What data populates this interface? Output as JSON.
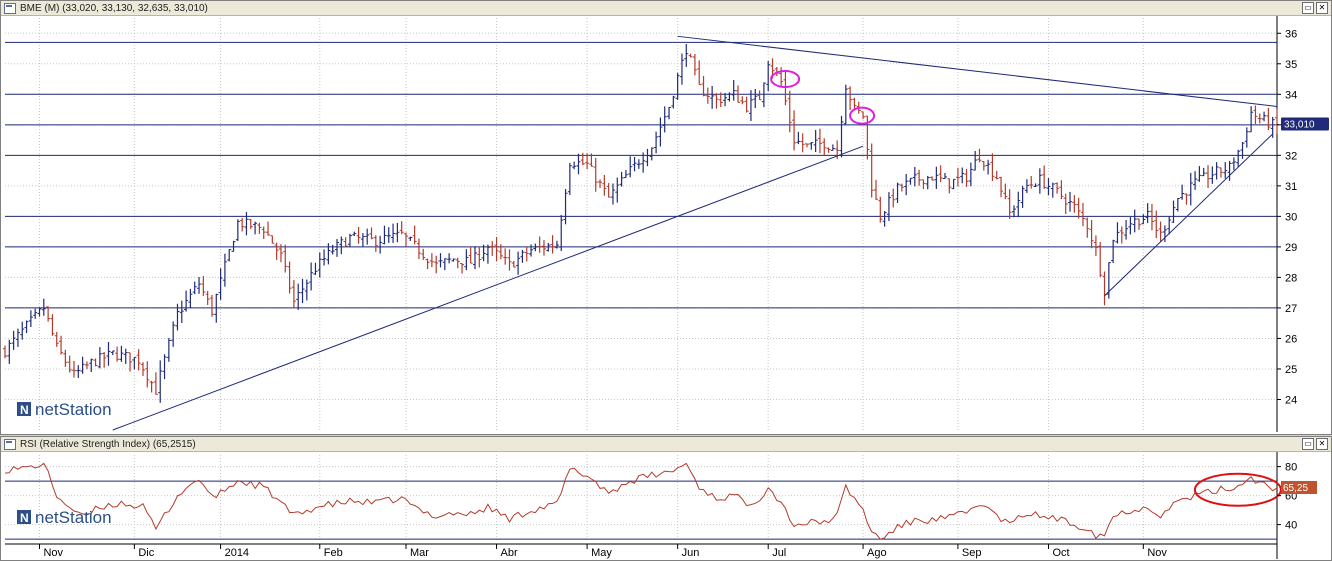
{
  "main_panel": {
    "title": "BME (M) (33,020, 33,130, 32,635, 33,010)",
    "last_price_label": "33,010",
    "logo_text": "netStation",
    "minimize_glyph": "▭",
    "close_glyph": "✕"
  },
  "rsi_panel": {
    "title": "RSI (Relative Strength Index) (65,2515)",
    "last_value_label": "65,25",
    "logo_text": "netStation"
  },
  "colors": {
    "up_bar": "#1f2a78",
    "down_bar": "#b33a2a",
    "rsi_line": "#b33a2a",
    "trendline": "#1f2a78",
    "badge_bg": "#1f2a78",
    "rsi_badge_bg": "#c0522f",
    "annotation_magenta": "#e020e0",
    "annotation_red": "#dd1111"
  },
  "chart_data": [
    {
      "type": "ohlc",
      "title": "BME (M)",
      "ylim": [
        23,
        36.5
      ],
      "y_ticks": [
        24,
        25,
        26,
        27,
        28,
        29,
        30,
        31,
        32,
        33,
        34,
        35,
        36
      ],
      "x_ticks": [
        "Nov",
        "Dic",
        "2014",
        "Feb",
        "Mar",
        "Abr",
        "May",
        "Jun",
        "Jul",
        "Ago",
        "Sep",
        "Oct",
        "Nov"
      ],
      "x_tick_index": [
        8,
        30,
        50,
        73,
        93,
        114,
        135,
        156,
        177,
        199,
        221,
        242,
        264
      ],
      "horizontal_levels": [
        27,
        29,
        30,
        32,
        33,
        34,
        35.7
      ],
      "trendlines": [
        {
          "from": [
            25,
            23
          ],
          "to": [
            199,
            32.3
          ]
        },
        {
          "from": [
            156,
            35.9
          ],
          "to": [
            295,
            33.6
          ]
        },
        {
          "from": [
            255,
            27.4
          ],
          "to": [
            294,
            32.7
          ]
        }
      ],
      "anchors": [
        [
          0,
          25.6
        ],
        [
          5,
          26.4
        ],
        [
          9,
          27.0
        ],
        [
          12,
          25.7
        ],
        [
          16,
          24.8
        ],
        [
          20,
          25.2
        ],
        [
          25,
          25.5
        ],
        [
          31,
          25.3
        ],
        [
          35,
          24.3
        ],
        [
          40,
          26.8
        ],
        [
          45,
          27.8
        ],
        [
          48,
          26.9
        ],
        [
          54,
          29.8
        ],
        [
          60,
          29.6
        ],
        [
          64,
          28.7
        ],
        [
          67,
          27.2
        ],
        [
          72,
          28.3
        ],
        [
          76,
          28.9
        ],
        [
          80,
          29.3
        ],
        [
          86,
          29.2
        ],
        [
          92,
          29.4
        ],
        [
          96,
          28.9
        ],
        [
          100,
          28.4
        ],
        [
          104,
          28.6
        ],
        [
          108,
          28.5
        ],
        [
          112,
          29.0
        ],
        [
          117,
          28.4
        ],
        [
          122,
          28.9
        ],
        [
          128,
          29.1
        ],
        [
          131,
          31.8
        ],
        [
          135,
          31.7
        ],
        [
          140,
          30.6
        ],
        [
          145,
          31.5
        ],
        [
          150,
          32.3
        ],
        [
          154,
          33.6
        ],
        [
          158,
          35.5
        ],
        [
          161,
          34.2
        ],
        [
          165,
          33.8
        ],
        [
          169,
          34.0
        ],
        [
          172,
          33.6
        ],
        [
          175,
          33.9
        ],
        [
          177,
          35.1
        ],
        [
          180,
          34.4
        ],
        [
          183,
          32.5
        ],
        [
          186,
          32.3
        ],
        [
          190,
          32.4
        ],
        [
          193,
          32.2
        ],
        [
          195,
          34.3
        ],
        [
          197,
          33.5
        ],
        [
          199,
          33.3
        ],
        [
          201,
          31.0
        ],
        [
          203,
          30.0
        ],
        [
          207,
          30.9
        ],
        [
          211,
          31.2
        ],
        [
          215,
          31.3
        ],
        [
          219,
          31.1
        ],
        [
          223,
          31.3
        ],
        [
          226,
          32.0
        ],
        [
          230,
          31.3
        ],
        [
          233,
          30.1
        ],
        [
          237,
          31.0
        ],
        [
          240,
          31.2
        ],
        [
          244,
          30.8
        ],
        [
          248,
          30.3
        ],
        [
          251,
          29.7
        ],
        [
          253,
          28.9
        ],
        [
          255,
          27.6
        ],
        [
          257,
          29.3
        ],
        [
          261,
          29.8
        ],
        [
          265,
          30.0
        ],
        [
          268,
          29.4
        ],
        [
          272,
          30.6
        ],
        [
          276,
          31.1
        ],
        [
          280,
          31.4
        ],
        [
          284,
          31.6
        ],
        [
          287,
          32.4
        ],
        [
          289,
          33.4
        ],
        [
          291,
          33.2
        ],
        [
          294,
          33.0
        ]
      ],
      "last_close": 33.01
    },
    {
      "type": "line",
      "title": "RSI (Relative Strength Index)",
      "ylim": [
        28,
        88
      ],
      "y_ticks": [
        40,
        60,
        80
      ],
      "horizontal_levels": [
        30,
        70
      ],
      "anchors": [
        [
          0,
          78
        ],
        [
          5,
          79
        ],
        [
          9,
          82
        ],
        [
          12,
          60
        ],
        [
          15,
          52
        ],
        [
          18,
          45
        ],
        [
          22,
          52
        ],
        [
          27,
          55
        ],
        [
          32,
          52
        ],
        [
          35,
          37
        ],
        [
          40,
          60
        ],
        [
          45,
          72
        ],
        [
          48,
          58
        ],
        [
          54,
          70
        ],
        [
          60,
          66
        ],
        [
          64,
          55
        ],
        [
          67,
          46
        ],
        [
          72,
          52
        ],
        [
          76,
          54
        ],
        [
          80,
          56
        ],
        [
          86,
          55
        ],
        [
          92,
          58
        ],
        [
          96,
          50
        ],
        [
          100,
          46
        ],
        [
          104,
          48
        ],
        [
          108,
          47
        ],
        [
          112,
          52
        ],
        [
          117,
          44
        ],
        [
          122,
          50
        ],
        [
          128,
          54
        ],
        [
          131,
          78
        ],
        [
          135,
          74
        ],
        [
          140,
          62
        ],
        [
          145,
          70
        ],
        [
          150,
          74
        ],
        [
          154,
          76
        ],
        [
          158,
          82
        ],
        [
          161,
          66
        ],
        [
          165,
          58
        ],
        [
          169,
          60
        ],
        [
          172,
          55
        ],
        [
          175,
          58
        ],
        [
          177,
          66
        ],
        [
          180,
          55
        ],
        [
          183,
          40
        ],
        [
          186,
          41
        ],
        [
          190,
          42
        ],
        [
          193,
          46
        ],
        [
          195,
          66
        ],
        [
          197,
          58
        ],
        [
          199,
          50
        ],
        [
          201,
          35
        ],
        [
          203,
          30
        ],
        [
          207,
          38
        ],
        [
          211,
          43
        ],
        [
          215,
          43
        ],
        [
          219,
          45
        ],
        [
          223,
          48
        ],
        [
          226,
          55
        ],
        [
          230,
          46
        ],
        [
          233,
          40
        ],
        [
          237,
          48
        ],
        [
          240,
          46
        ],
        [
          244,
          44
        ],
        [
          248,
          40
        ],
        [
          251,
          38
        ],
        [
          253,
          33
        ],
        [
          255,
          33
        ],
        [
          257,
          46
        ],
        [
          261,
          50
        ],
        [
          265,
          52
        ],
        [
          268,
          47
        ],
        [
          272,
          56
        ],
        [
          276,
          60
        ],
        [
          280,
          63
        ],
        [
          284,
          65
        ],
        [
          287,
          68
        ],
        [
          289,
          73
        ],
        [
          291,
          69
        ],
        [
          294,
          65.25
        ]
      ],
      "last_value": 65.25
    }
  ]
}
